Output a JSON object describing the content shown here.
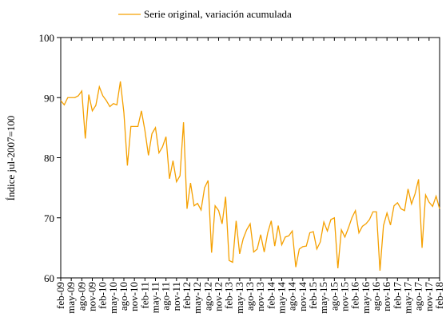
{
  "chart_data": {
    "type": "line",
    "legend": "Serie original, variación acumulada",
    "y_label": "Índice jul-2007=100",
    "color": "#f5a000",
    "ylim": [
      60,
      100
    ],
    "yticks": [
      60,
      70,
      80,
      90,
      100
    ],
    "categories": [
      "feb-09",
      null,
      null,
      "may-09",
      null,
      null,
      "ago-09",
      null,
      null,
      "nov-09",
      null,
      null,
      "feb-10",
      null,
      null,
      "may-10",
      null,
      null,
      "ago-10",
      null,
      null,
      "nov-10",
      null,
      null,
      "feb-11",
      null,
      null,
      "may-11",
      null,
      null,
      "ago-11",
      null,
      null,
      "nov-11",
      null,
      null,
      "feb-12",
      null,
      null,
      "may-12",
      null,
      null,
      "ago-12",
      null,
      null,
      "nov-12",
      null,
      null,
      "feb-13",
      null,
      null,
      "may-13",
      null,
      null,
      "ago-13",
      null,
      null,
      "nov-13",
      null,
      null,
      "feb-14",
      null,
      null,
      "may-14",
      null,
      null,
      "ago-14",
      null,
      null,
      "nov-14",
      null,
      null,
      "feb-15",
      null,
      null,
      "may-15",
      null,
      null,
      "ago-15",
      null,
      null,
      "nov-15",
      null,
      null,
      "feb-16",
      null,
      null,
      "may-16",
      null,
      null,
      "ago-16",
      null,
      null,
      "nov-16",
      null,
      null,
      "feb-17",
      null,
      null,
      "may-17",
      null,
      null,
      "ago-17",
      null,
      null,
      "nov-17",
      null,
      null,
      "feb-18"
    ],
    "values": [
      89.5,
      88.8,
      90,
      90,
      90,
      90.3,
      91.1,
      83.2,
      90.5,
      87.8,
      88.7,
      91.8,
      90.3,
      89.5,
      88.5,
      89,
      88.8,
      92.7,
      87.5,
      78.7,
      85.2,
      85.2,
      85.2,
      87.8,
      84.5,
      80.4,
      84,
      85,
      80.8,
      81.8,
      83.5,
      76.5,
      79.5,
      76,
      77,
      85.9,
      71.5,
      75.8,
      72,
      72.4,
      71.3,
      75,
      76.2,
      64.2,
      72,
      71.2,
      69,
      73.5,
      62.9,
      62.6,
      69.5,
      64,
      66.5,
      68,
      69,
      64.3,
      64.8,
      67.2,
      64.3,
      67.5,
      69.5,
      65.3,
      68.7,
      65.5,
      66.8,
      67,
      67.8,
      61.8,
      64.8,
      65.2,
      65.3,
      67.5,
      67.7,
      64.8,
      66,
      69.3,
      67.8,
      69.7,
      70,
      61.6,
      68,
      66.8,
      68.3,
      70,
      71.2,
      67.5,
      68.6,
      69,
      69.7,
      71,
      71,
      61.2,
      68.7,
      70.8,
      68.8,
      72,
      72.5,
      71.5,
      71.2,
      74.8,
      72.3,
      74,
      76.4,
      65,
      73.8,
      72.6,
      71.9,
      73.6,
      71.5
    ]
  }
}
